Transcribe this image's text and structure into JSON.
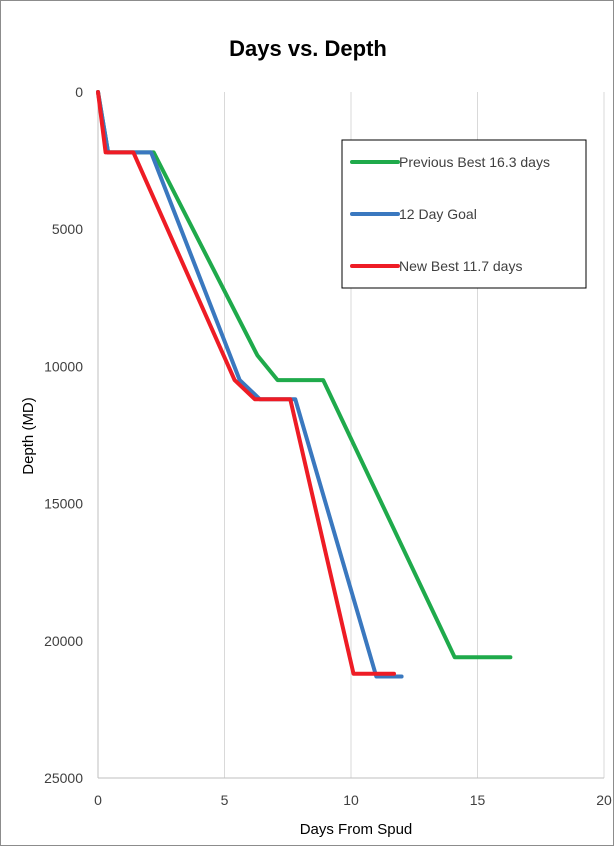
{
  "chart_data": {
    "type": "line",
    "title": "Days vs. Depth",
    "xlabel": "Days From Spud",
    "ylabel": "Depth (MD)",
    "xlim": [
      0,
      20
    ],
    "ylim": [
      0,
      25000
    ],
    "y_inverted": true,
    "x_ticks": [
      "0",
      "5",
      "10",
      "15",
      "20"
    ],
    "y_ticks": [
      "0",
      "5000",
      "10000",
      "15000",
      "20000",
      "25000"
    ],
    "grid": "vertical",
    "legend_position": "top-right",
    "series": [
      {
        "name": "Previous Best 16.3 days",
        "color": "#1faa4b",
        "points": [
          [
            0,
            0
          ],
          [
            0.4,
            2200
          ],
          [
            2.2,
            2200
          ],
          [
            6.3,
            9600
          ],
          [
            7.1,
            10500
          ],
          [
            8.9,
            10500
          ],
          [
            14.1,
            20600
          ],
          [
            16.3,
            20600
          ]
        ]
      },
      {
        "name": "12 Day Goal",
        "color": "#3a78bf",
        "points": [
          [
            0,
            0
          ],
          [
            0.4,
            2200
          ],
          [
            2.1,
            2200
          ],
          [
            5.6,
            10500
          ],
          [
            6.4,
            11200
          ],
          [
            7.8,
            11200
          ],
          [
            11.0,
            21300
          ],
          [
            12.0,
            21300
          ]
        ]
      },
      {
        "name": "New Best 11.7 days",
        "color": "#ee1c25",
        "points": [
          [
            0,
            0
          ],
          [
            0.3,
            2200
          ],
          [
            1.4,
            2200
          ],
          [
            5.4,
            10500
          ],
          [
            6.2,
            11200
          ],
          [
            7.6,
            11200
          ],
          [
            10.1,
            21200
          ],
          [
            11.7,
            21200
          ]
        ]
      }
    ]
  }
}
